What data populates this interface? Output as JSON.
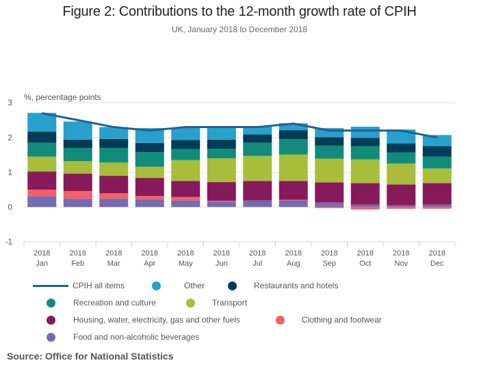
{
  "chart_data": {
    "type": "bar",
    "stacked": true,
    "title": "Figure 2: Contributions to the 12-month growth rate of CPIH",
    "subtitle": "UK, January 2018 to December 2018",
    "ylabel": "%, percentage points",
    "xlabel": "",
    "ylim": [
      -1,
      3
    ],
    "yticks": [
      "3",
      "2",
      "1",
      "0",
      "-1"
    ],
    "ytick_values": [
      3,
      2,
      1,
      0,
      -1
    ],
    "grid": true,
    "legend_position": "bottom",
    "categories": [
      {
        "year": "2018",
        "month": "Jan"
      },
      {
        "year": "2018",
        "month": "Feb"
      },
      {
        "year": "2018",
        "month": "Mar"
      },
      {
        "year": "2018",
        "month": "Apr"
      },
      {
        "year": "2018",
        "month": "May"
      },
      {
        "year": "2018",
        "month": "Jun"
      },
      {
        "year": "2018",
        "month": "Jul"
      },
      {
        "year": "2018",
        "month": "Aug"
      },
      {
        "year": "2018",
        "month": "Sep"
      },
      {
        "year": "2018",
        "month": "Oct"
      },
      {
        "year": "2018",
        "month": "Nov"
      },
      {
        "year": "2018",
        "month": "Dec"
      }
    ],
    "series": [
      {
        "name": "Food and non-alcoholic beverages",
        "color": "#746CB1",
        "values": [
          0.31,
          0.24,
          0.24,
          0.22,
          0.19,
          0.16,
          0.19,
          0.19,
          0.13,
          0.07,
          0.05,
          0.07
        ]
      },
      {
        "name": "Clothing and footwear",
        "color": "#F66068",
        "values": [
          0.19,
          0.22,
          0.16,
          0.1,
          0.1,
          0.02,
          0.0,
          0.02,
          -0.03,
          -0.07,
          -0.05,
          -0.05
        ]
      },
      {
        "name": "Housing, water, electricity, gas and other fuels",
        "color": "#871A5B",
        "values": [
          0.52,
          0.5,
          0.5,
          0.52,
          0.46,
          0.54,
          0.56,
          0.54,
          0.58,
          0.62,
          0.6,
          0.62
        ]
      },
      {
        "name": "Transport",
        "color": "#A8BD3A",
        "values": [
          0.43,
          0.36,
          0.38,
          0.32,
          0.6,
          0.68,
          0.72,
          0.76,
          0.68,
          0.68,
          0.6,
          0.42
        ]
      },
      {
        "name": "Recreation and culture",
        "color": "#118C7B",
        "values": [
          0.4,
          0.38,
          0.42,
          0.42,
          0.32,
          0.28,
          0.38,
          0.44,
          0.38,
          0.38,
          0.32,
          0.34
        ]
      },
      {
        "name": "Restaurants and hotels",
        "color": "#003C57",
        "values": [
          0.32,
          0.24,
          0.26,
          0.26,
          0.26,
          0.26,
          0.24,
          0.26,
          0.24,
          0.24,
          0.26,
          0.3
        ]
      },
      {
        "name": "Other",
        "color": "#27A0CC",
        "values": [
          0.54,
          0.52,
          0.34,
          0.43,
          0.36,
          0.34,
          0.24,
          0.2,
          0.26,
          0.32,
          0.4,
          0.32
        ]
      }
    ],
    "line_series": {
      "name": "CPIH all items",
      "color": "#206095",
      "values": [
        2.7,
        2.5,
        2.3,
        2.2,
        2.3,
        2.3,
        2.3,
        2.4,
        2.2,
        2.2,
        2.2,
        2.0
      ]
    }
  },
  "legend": [
    {
      "label": "CPIH all items",
      "type": "line",
      "color": "#206095"
    },
    {
      "label": "Other",
      "type": "dot",
      "color": "#27A0CC"
    },
    {
      "label": "Restaurants and hotels",
      "type": "dot",
      "color": "#003C57"
    },
    {
      "label": "Recreation and culture",
      "type": "dot",
      "color": "#118C7B"
    },
    {
      "label": "Transport",
      "type": "dot",
      "color": "#A8BD3A"
    },
    {
      "label": "Housing, water, electricity, gas and other fuels",
      "type": "dot",
      "color": "#871A5B"
    },
    {
      "label": "Clothing and footwear",
      "type": "dot",
      "color": "#F66068"
    },
    {
      "label": "Food and non-alcoholic beverages",
      "type": "dot",
      "color": "#746CB1"
    }
  ],
  "source": "Source: Office for National Statistics"
}
